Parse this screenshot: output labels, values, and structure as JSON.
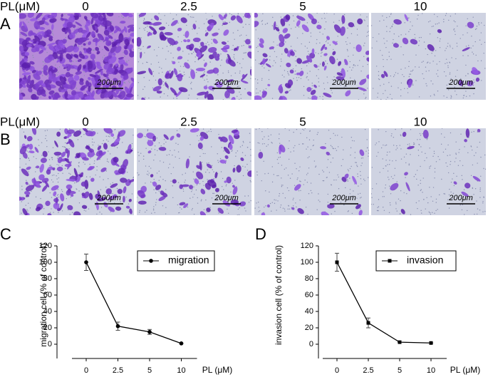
{
  "panels": [
    {
      "label": "A",
      "header": "PL(μM)",
      "doses": [
        "0",
        "2.5",
        "5",
        "10"
      ],
      "scale_bar": "200μm"
    },
    {
      "label": "B",
      "header": "PL(μM)",
      "doses": [
        "0",
        "2.5",
        "5",
        "10"
      ],
      "scale_bar": "200μm"
    }
  ],
  "chart_data": [
    {
      "type": "line",
      "panel_label": "C",
      "y_label": "migration cell (% of control)",
      "x_label": "PL (μM)",
      "categories": [
        "0",
        "2.5",
        "5",
        "10"
      ],
      "series": [
        {
          "name": "migration",
          "color": "#000000",
          "marker": "circle",
          "values": [
            100,
            22,
            15,
            1
          ],
          "errors": [
            10,
            5,
            3,
            0
          ]
        }
      ],
      "ylim": [
        0,
        120
      ],
      "yticks": [
        0,
        20,
        40,
        60,
        80,
        100,
        120
      ],
      "legend": "top-right"
    },
    {
      "type": "line",
      "panel_label": "D",
      "y_label": "invasion cell (% of control)",
      "x_label": "PL (μM)",
      "categories": [
        "0",
        "2.5",
        "5",
        "10"
      ],
      "series": [
        {
          "name": "invasion",
          "color": "#000000",
          "marker": "square",
          "values": [
            100,
            26,
            2.5,
            1.5
          ],
          "errors": [
            11,
            6,
            0,
            0
          ]
        }
      ],
      "ylim": [
        0,
        120
      ],
      "yticks": [
        0,
        20,
        40,
        60,
        80,
        100,
        120
      ],
      "legend": "top-right"
    }
  ]
}
